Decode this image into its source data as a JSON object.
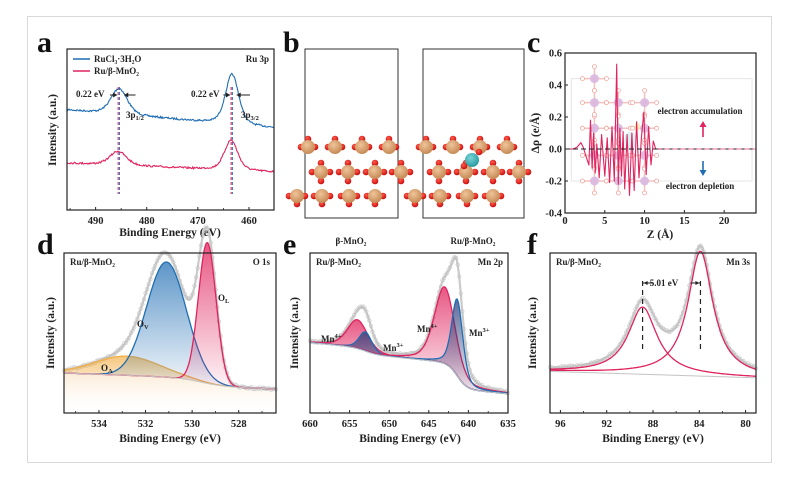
{
  "figure": {
    "panels": [
      "a",
      "b",
      "c",
      "d",
      "e",
      "f"
    ]
  },
  "colors": {
    "blue": "#1f6db3",
    "pink": "#e0245e",
    "orange": "#f2b04a",
    "gray": "#bdbdbd",
    "mn_atom": "#d9a06e",
    "o_atom": "#e01515",
    "ru_atom": "#3fb3b8"
  },
  "chart_data": [
    {
      "panel": "a",
      "type": "line",
      "title": "Ru 3p",
      "xlabel": "Binding Energy (eV)",
      "ylabel": "Intensity (a.u.)",
      "xlim": [
        495.6,
        455.1
      ],
      "xticks": [
        490,
        480,
        470,
        460
      ],
      "legend": [
        {
          "name": "RuCl₃·3H₂O",
          "label_main": "RuCl",
          "color": "#1f6db3"
        },
        {
          "name": "Ru/β-MnO₂",
          "color": "#e0245e"
        }
      ],
      "legend_text": [
        "RuCl₃·3H₂O",
        "Ru/β-MnO₂"
      ],
      "legend_position": "top-left",
      "series": [
        {
          "name": "RuCl3·3H2O",
          "peaks": [
            {
              "center": 485.4,
              "label": "3p1/2"
            },
            {
              "center": 463.3,
              "label": "3p3/2"
            }
          ]
        },
        {
          "name": "Ru/β-MnO2",
          "peaks": [
            {
              "center": 485.6,
              "label": "3p1/2"
            },
            {
              "center": 463.5,
              "label": "3p3/2"
            }
          ]
        }
      ],
      "annotations": {
        "shift_left": "0.22 eV",
        "shift_right": "0.22 eV",
        "peak_left": "3p",
        "peak_left_sub": "1/2",
        "peak_right": "3p",
        "peak_right_sub": "3/2"
      }
    },
    {
      "panel": "b",
      "type": "structure",
      "labels": [
        "β-MnO₂",
        "Ru/β-MnO₂"
      ]
    },
    {
      "panel": "c",
      "type": "line",
      "xlabel": "Z (Å)",
      "ylabel": "Δρ (e/Å)",
      "xlim": [
        0,
        24
      ],
      "ylim": [
        -0.4,
        0.6
      ],
      "xticks": [
        0,
        5,
        10,
        15,
        20
      ],
      "yticks": [
        -0.4,
        -0.2,
        0.0,
        0.2,
        0.4,
        0.6
      ],
      "ytick_labels": [
        "-0.4",
        "-0.2",
        "0.0",
        "0.2",
        "0.4",
        "0.6"
      ],
      "series": [
        {
          "name": "Δρ",
          "x": [
            0,
            1,
            1.5,
            2,
            2.3,
            2.6,
            3,
            3.2,
            3.4,
            3.6,
            3.8,
            4,
            4.3,
            4.6,
            5,
            5.3,
            5.6,
            5.9,
            6.2,
            6.5,
            6.7,
            6.9,
            7.1,
            7.3,
            7.5,
            7.8,
            8.1,
            8.4,
            8.7,
            9,
            9.3,
            9.6,
            9.9,
            10.2,
            10.5,
            10.8,
            11.1,
            11.4,
            11.8,
            12.5,
            24
          ],
          "y": [
            0,
            0,
            0.01,
            0.04,
            0.01,
            -0.04,
            -0.1,
            0.18,
            -0.12,
            0.1,
            -0.15,
            0.03,
            -0.18,
            0.09,
            -0.17,
            0.07,
            -0.21,
            0.14,
            -0.2,
            0.53,
            -0.22,
            0.13,
            -0.17,
            0.11,
            -0.25,
            0.09,
            -0.29,
            0.1,
            -0.26,
            0.17,
            -0.18,
            0.07,
            0.23,
            -0.16,
            0.14,
            -0.1,
            0.05,
            0,
            0,
            0,
            0
          ]
        }
      ],
      "annotations": {
        "accumulation": "electron accumulation",
        "depletion": "electron depletion"
      }
    },
    {
      "panel": "d",
      "type": "area",
      "title": "O 1s",
      "sample": "Ru/β-MnO₂",
      "xlabel": "Binding Energy (eV)",
      "ylabel": "Intensity (a.u.)",
      "xlim": [
        535.5,
        526.4
      ],
      "xticks": [
        534,
        532,
        530,
        528
      ],
      "series": [
        {
          "name": "O_A",
          "label": "O",
          "sub": "A",
          "center": 532.8,
          "height": 0.12,
          "width": 1.4,
          "color": "#f2b04a"
        },
        {
          "name": "O_V",
          "label": "O",
          "sub": "V",
          "center": 531.1,
          "height": 0.72,
          "width": 0.85,
          "color": "#1f6db3"
        },
        {
          "name": "O_L",
          "label": "O",
          "sub": "L",
          "center": 529.35,
          "height": 0.88,
          "width": 0.38,
          "color": "#e0245e"
        }
      ]
    },
    {
      "panel": "e",
      "type": "area",
      "title": "Mn 2p",
      "sample": "Ru/β-MnO₂",
      "xlabel": "Binding Energy (eV)",
      "ylabel": "Intensity (a.u.)",
      "xlim": [
        660,
        635
      ],
      "xticks": [
        660,
        655,
        650,
        645,
        640,
        635
      ],
      "series": [
        {
          "name": "Mn4+ (2p1/2)",
          "label": "Mn",
          "sup": "4+",
          "center": 654.0,
          "height": 0.18,
          "width": 1.3,
          "color": "#e0245e"
        },
        {
          "name": "Mn3+ (2p1/2)",
          "label": "Mn",
          "sup": "3+",
          "center": 653.0,
          "height": 0.12,
          "width": 0.8,
          "color": "#1f6db3"
        },
        {
          "name": "Mn4+ (2p3/2)",
          "label": "Mn",
          "sup": "4+",
          "center": 643.0,
          "height": 0.48,
          "width": 1.3,
          "color": "#e0245e"
        },
        {
          "name": "Mn3+ (2p3/2)",
          "label": "Mn",
          "sup": "3+",
          "center": 641.4,
          "height": 0.48,
          "width": 0.7,
          "color": "#1f6db3"
        }
      ]
    },
    {
      "panel": "f",
      "type": "line",
      "title": "Mn 3s",
      "sample": "Ru/β-MnO₂",
      "xlabel": "Binding Energy (eV)",
      "ylabel": "Intensity (a.u.)",
      "xlim": [
        96.9,
        79.1
      ],
      "xticks": [
        96,
        92,
        88,
        84,
        80
      ],
      "series": [
        {
          "name": "peak1",
          "center": 88.9,
          "height": 0.42,
          "width": 1.5,
          "color": "#e0245e"
        },
        {
          "name": "peak2",
          "center": 83.9,
          "height": 0.78,
          "width": 1.3,
          "color": "#e0245e"
        }
      ],
      "annotations": {
        "splitting": "5.01 eV"
      }
    }
  ]
}
